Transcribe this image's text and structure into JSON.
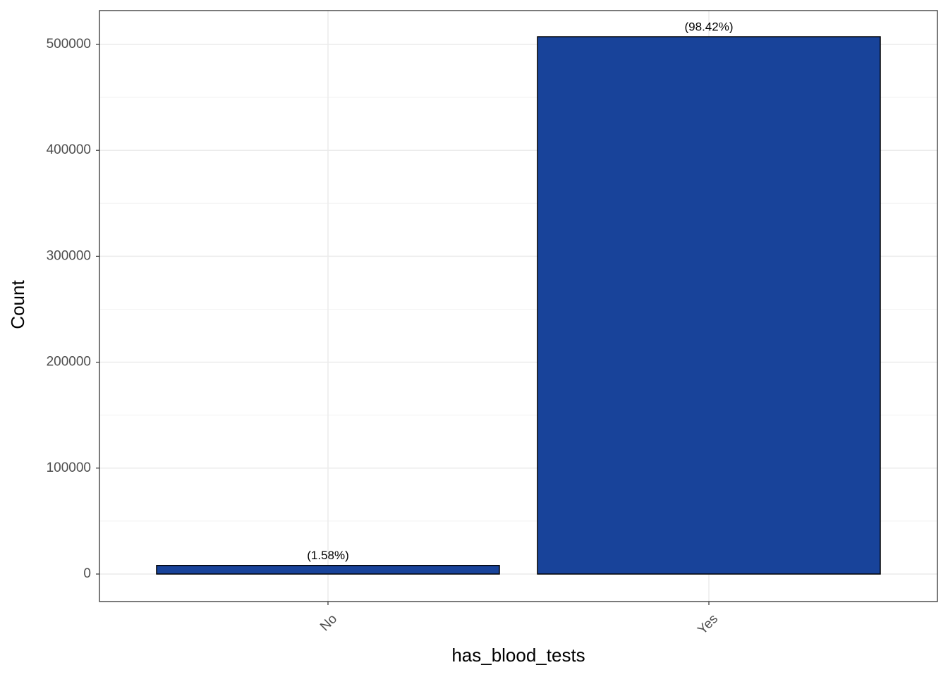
{
  "chart_data": {
    "type": "bar",
    "categories": [
      "No",
      "Yes"
    ],
    "values": [
      8150,
      507300
    ],
    "annotations": [
      "(1.58%)",
      "(98.42%)"
    ],
    "color": "#18439a",
    "x_label": "has_blood_tests",
    "y_label": "Count",
    "ylim": [
      -25966,
      531958
    ],
    "yticks": [
      0,
      100000,
      200000,
      300000,
      400000,
      500000
    ],
    "grid": true
  }
}
